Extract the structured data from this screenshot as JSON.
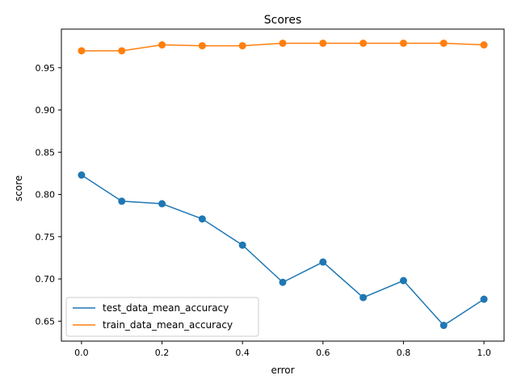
{
  "chart_data": {
    "type": "line",
    "title": "Scores",
    "xlabel": "error",
    "ylabel": "score",
    "xlim": [
      -0.05,
      1.05
    ],
    "ylim": [
      0.6264,
      0.9957
    ],
    "xticks": [
      0.0,
      0.2,
      0.4,
      0.6,
      0.8,
      1.0
    ],
    "xtick_labels": [
      "0.0",
      "0.2",
      "0.4",
      "0.6",
      "0.8",
      "1.0"
    ],
    "yticks": [
      0.65,
      0.7,
      0.75,
      0.8,
      0.85,
      0.9,
      0.95
    ],
    "ytick_labels": [
      "0.65",
      "0.70",
      "0.75",
      "0.80",
      "0.85",
      "0.90",
      "0.95"
    ],
    "grid": false,
    "legend_position": "lower-left",
    "x": [
      0.0,
      0.1,
      0.2,
      0.3,
      0.4,
      0.5,
      0.6,
      0.7,
      0.8,
      0.9,
      1.0
    ],
    "series": [
      {
        "name": "test_data_mean_accuracy",
        "color": "#1f77b4",
        "values": [
          0.823,
          0.792,
          0.789,
          0.771,
          0.74,
          0.696,
          0.72,
          0.678,
          0.698,
          0.645,
          0.676
        ]
      },
      {
        "name": "train_data_mean_accuracy",
        "color": "#ff7f0e",
        "values": [
          0.97,
          0.97,
          0.977,
          0.976,
          0.976,
          0.979,
          0.979,
          0.979,
          0.979,
          0.979,
          0.977
        ]
      }
    ]
  }
}
